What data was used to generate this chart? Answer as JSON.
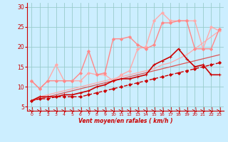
{
  "xlabel": "Vent moyen/en rafales ( km/h )",
  "xlim": [
    -0.5,
    23.5
  ],
  "ylim": [
    4,
    31
  ],
  "yticks": [
    5,
    10,
    15,
    20,
    25,
    30
  ],
  "xticks": [
    0,
    1,
    2,
    3,
    4,
    5,
    6,
    7,
    8,
    9,
    10,
    11,
    12,
    13,
    14,
    15,
    16,
    17,
    18,
    19,
    20,
    21,
    22,
    23
  ],
  "background_color": "#cceeff",
  "grid_color": "#99cccc",
  "series": [
    {
      "x": [
        0,
        1,
        2,
        3,
        4,
        5,
        6,
        7,
        8,
        9,
        10,
        11,
        12,
        13,
        14,
        15,
        16,
        17,
        18,
        19,
        20,
        21,
        22,
        23
      ],
      "y": [
        6.5,
        7.5,
        8.0,
        8.5,
        9.0,
        9.5,
        10.0,
        10.5,
        11.0,
        11.5,
        12.0,
        12.5,
        13.0,
        13.5,
        14.0,
        14.5,
        15.5,
        16.0,
        17.0,
        18.0,
        19.5,
        21.0,
        22.5,
        24.0
      ],
      "color": "#ffaaaa",
      "linewidth": 0.9,
      "marker": null,
      "markersize": 0,
      "linestyle": "-"
    },
    {
      "x": [
        0,
        1,
        2,
        3,
        4,
        5,
        6,
        7,
        8,
        9,
        10,
        11,
        12,
        13,
        14,
        15,
        16,
        17,
        18,
        19,
        20,
        21,
        22,
        23
      ],
      "y": [
        11.5,
        9.5,
        11.5,
        15.5,
        11.5,
        11.5,
        11.5,
        13.5,
        13.0,
        13.0,
        11.5,
        13.0,
        14.0,
        19.5,
        20.0,
        26.5,
        28.5,
        26.5,
        26.5,
        26.5,
        26.5,
        19.5,
        25.0,
        24.0
      ],
      "color": "#ffaaaa",
      "linewidth": 1.0,
      "marker": "D",
      "markersize": 2.0,
      "linestyle": "-"
    },
    {
      "x": [
        0,
        1,
        2,
        3,
        4,
        5,
        6,
        7,
        8,
        9,
        10,
        11,
        12,
        13,
        14,
        15,
        16,
        17,
        18,
        19,
        20,
        21,
        22,
        23
      ],
      "y": [
        11.5,
        9.5,
        11.5,
        11.5,
        11.5,
        11.5,
        13.5,
        19.0,
        13.0,
        13.5,
        22.0,
        22.0,
        22.5,
        20.5,
        19.5,
        20.5,
        26.0,
        26.0,
        26.5,
        26.5,
        19.5,
        19.5,
        19.5,
        24.5
      ],
      "color": "#ff8888",
      "linewidth": 1.0,
      "marker": "D",
      "markersize": 2.0,
      "linestyle": "-"
    },
    {
      "x": [
        0,
        1,
        2,
        3,
        4,
        5,
        6,
        7,
        8,
        9,
        10,
        11,
        12,
        13,
        14,
        15,
        16,
        17,
        18,
        19,
        20,
        21,
        22,
        23
      ],
      "y": [
        6.5,
        7.0,
        7.5,
        8.0,
        8.5,
        9.0,
        9.5,
        10.0,
        10.5,
        11.0,
        11.5,
        12.0,
        12.5,
        13.0,
        13.5,
        14.0,
        14.5,
        15.0,
        15.5,
        16.0,
        16.5,
        17.0,
        17.5,
        18.0
      ],
      "color": "#dd5555",
      "linewidth": 0.9,
      "marker": null,
      "markersize": 0,
      "linestyle": "-"
    },
    {
      "x": [
        0,
        1,
        2,
        3,
        4,
        5,
        6,
        7,
        8,
        9,
        10,
        11,
        12,
        13,
        14,
        15,
        16,
        17,
        18,
        19,
        20,
        21,
        22,
        23
      ],
      "y": [
        6.5,
        7.5,
        7.5,
        7.5,
        8.0,
        8.0,
        8.5,
        9.0,
        10.0,
        10.5,
        11.5,
        12.0,
        12.0,
        12.5,
        13.0,
        15.5,
        16.5,
        17.5,
        19.5,
        17.0,
        15.0,
        15.5,
        13.0,
        13.0
      ],
      "color": "#cc0000",
      "linewidth": 1.2,
      "marker": "+",
      "markersize": 3.5,
      "linestyle": "-"
    },
    {
      "x": [
        0,
        1,
        2,
        3,
        4,
        5,
        6,
        7,
        8,
        9,
        10,
        11,
        12,
        13,
        14,
        15,
        16,
        17,
        18,
        19,
        20,
        21,
        22,
        23
      ],
      "y": [
        6.5,
        7.0,
        7.0,
        7.5,
        7.5,
        7.5,
        7.5,
        8.0,
        8.5,
        9.0,
        9.5,
        10.0,
        10.5,
        11.0,
        11.5,
        12.0,
        12.5,
        13.0,
        13.5,
        14.0,
        14.5,
        15.0,
        15.5,
        16.0
      ],
      "color": "#cc0000",
      "linewidth": 1.0,
      "marker": "D",
      "markersize": 2.0,
      "linestyle": "--"
    }
  ]
}
